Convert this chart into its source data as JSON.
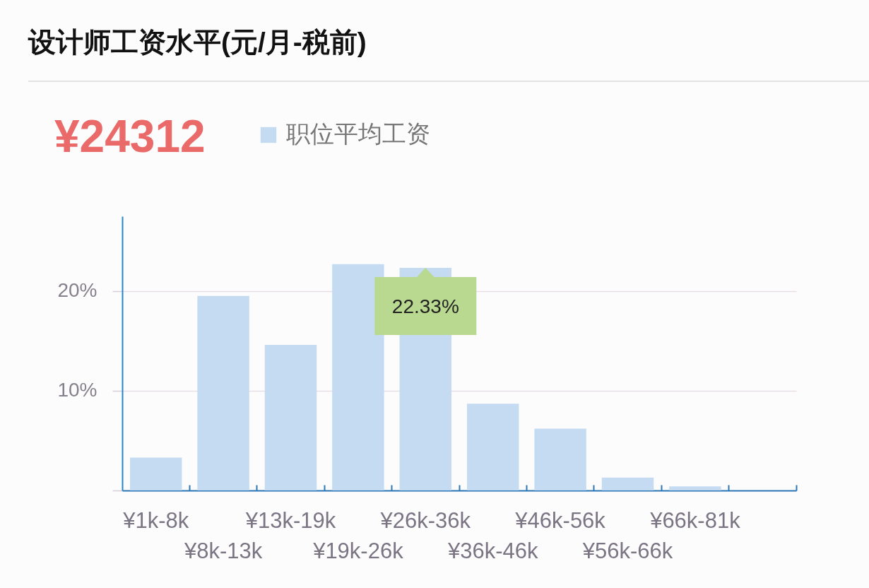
{
  "chart_data": {
    "type": "bar",
    "title": "设计师工资水平(元/月-税前)",
    "annotations": [
      "¥24312"
    ],
    "categories": [
      "¥1k-8k",
      "¥8k-13k",
      "¥13k-19k",
      "¥19k-26k",
      "¥26k-36k",
      "¥36k-46k",
      "¥46k-56k",
      "¥56k-66k",
      "¥66k-81k",
      null
    ],
    "series": [
      {
        "name": "职位平均工资",
        "color": "#c4dbf2",
        "values": [
          3.3,
          19.5,
          14.6,
          22.7,
          22.33,
          8.7,
          6.2,
          1.3,
          0.4,
          0
        ],
        "value_labels": [
          null,
          null,
          null,
          null,
          "22.33%",
          null,
          null,
          null,
          null,
          null
        ]
      }
    ],
    "ylim": [
      0,
      27.5
    ],
    "yticks": [
      {
        "value": 0,
        "label": null
      },
      {
        "value": 10,
        "label": "10%"
      },
      {
        "value": 20,
        "label": "20%"
      }
    ],
    "grid": "y",
    "legend": "top left"
  }
}
